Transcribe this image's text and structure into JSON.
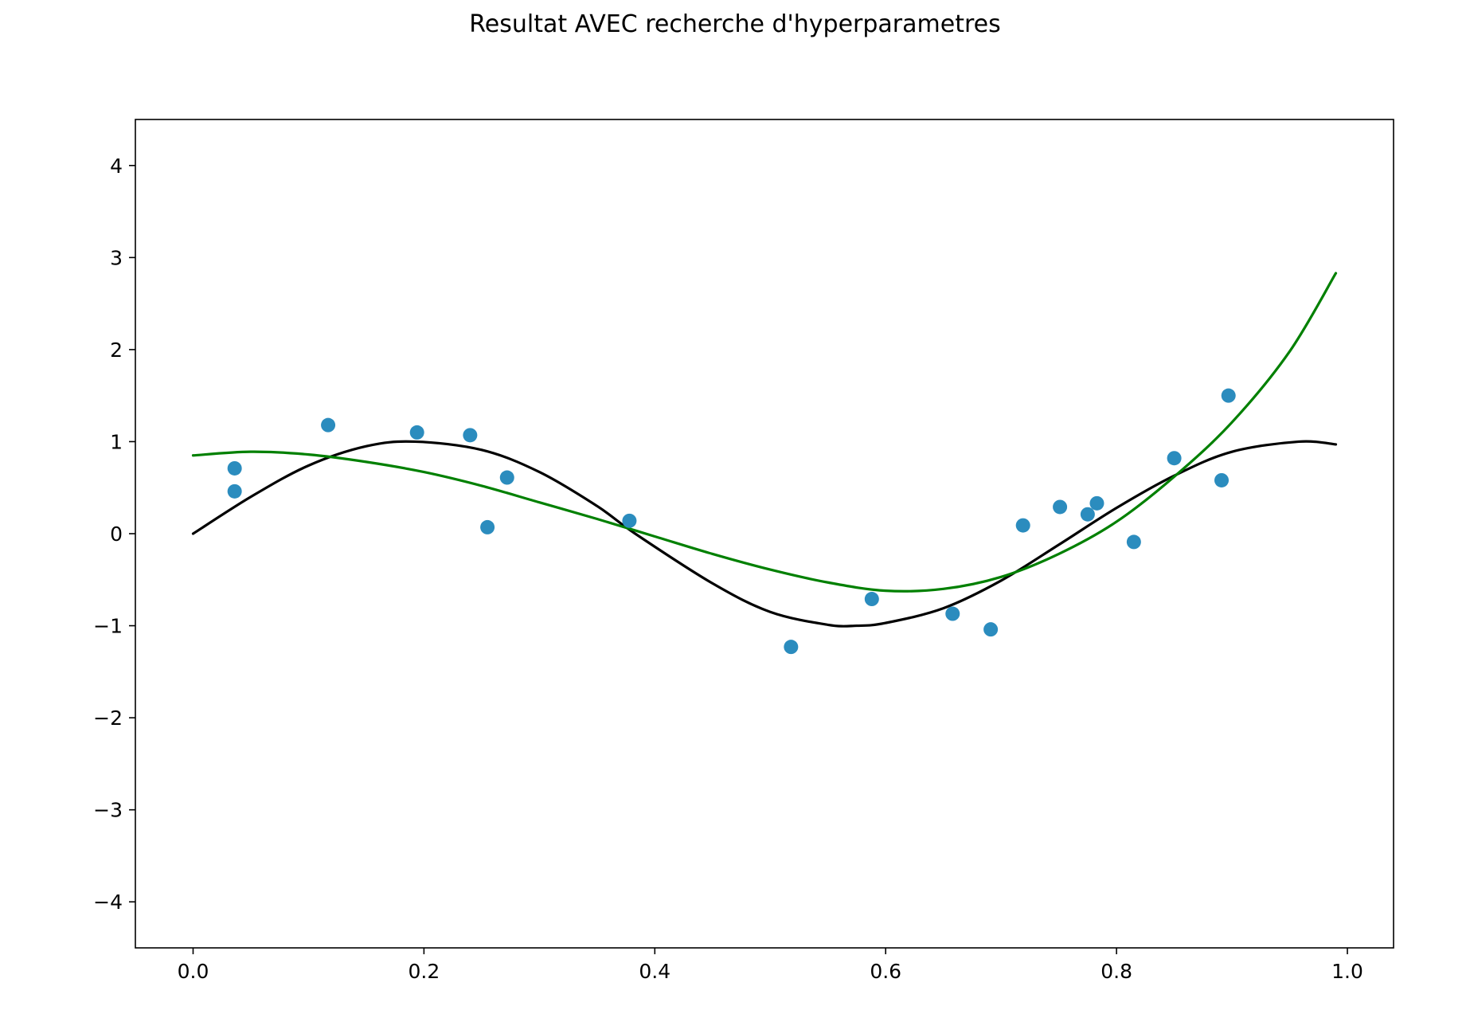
{
  "chart_data": {
    "type": "scatter",
    "title": "Resultat AVEC recherche d'hyperparametres",
    "xlabel": "",
    "ylabel": "",
    "xlim": [
      -0.05,
      1.04
    ],
    "ylim": [
      -4.5,
      4.5
    ],
    "grid": false,
    "xticks": [
      0.0,
      0.2,
      0.4,
      0.6,
      0.8,
      1.0
    ],
    "xtick_labels": [
      "0.0",
      "0.2",
      "0.4",
      "0.6",
      "0.8",
      "1.0"
    ],
    "yticks": [
      -4,
      -3,
      -2,
      -1,
      0,
      1,
      2,
      3,
      4
    ],
    "ytick_labels": [
      "−4",
      "−3",
      "−2",
      "−1",
      "0",
      "1",
      "2",
      "3",
      "4"
    ],
    "series": [
      {
        "kind": "scatter",
        "color": "#2b8cbe",
        "x": [
          0.036,
          0.036,
          0.117,
          0.194,
          0.24,
          0.255,
          0.272,
          0.378,
          0.518,
          0.588,
          0.658,
          0.691,
          0.719,
          0.751,
          0.775,
          0.783,
          0.815,
          0.85,
          0.891,
          0.897
        ],
        "y": [
          0.71,
          0.46,
          1.18,
          1.1,
          1.07,
          0.07,
          0.61,
          0.14,
          -1.23,
          -0.71,
          -0.87,
          -1.04,
          0.09,
          0.29,
          0.21,
          0.33,
          -0.09,
          0.82,
          0.58,
          1.5
        ]
      },
      {
        "kind": "line",
        "color": "#000000",
        "x": [
          0.0,
          0.05,
          0.1,
          0.15,
          0.192,
          0.25,
          0.3,
          0.35,
          0.383,
          0.45,
          0.5,
          0.55,
          0.575,
          0.6,
          0.65,
          0.7,
          0.75,
          0.8,
          0.85,
          0.9,
          0.958,
          0.99
        ],
        "y": [
          0.0,
          0.4,
          0.74,
          0.95,
          1.0,
          0.91,
          0.67,
          0.3,
          0.0,
          -0.54,
          -0.85,
          -0.99,
          -1.0,
          -0.97,
          -0.81,
          -0.51,
          -0.12,
          0.28,
          0.63,
          0.89,
          1.0,
          0.97
        ]
      },
      {
        "kind": "line",
        "color": "#008000",
        "x": [
          0.0,
          0.05,
          0.1,
          0.15,
          0.2,
          0.25,
          0.3,
          0.35,
          0.4,
          0.45,
          0.5,
          0.55,
          0.6,
          0.65,
          0.7,
          0.75,
          0.8,
          0.85,
          0.9,
          0.95,
          0.99
        ],
        "y": [
          0.85,
          0.89,
          0.86,
          0.78,
          0.67,
          0.52,
          0.34,
          0.16,
          -0.03,
          -0.22,
          -0.39,
          -0.53,
          -0.62,
          -0.6,
          -0.47,
          -0.22,
          0.13,
          0.62,
          1.21,
          1.98,
          2.83
        ]
      }
    ]
  }
}
